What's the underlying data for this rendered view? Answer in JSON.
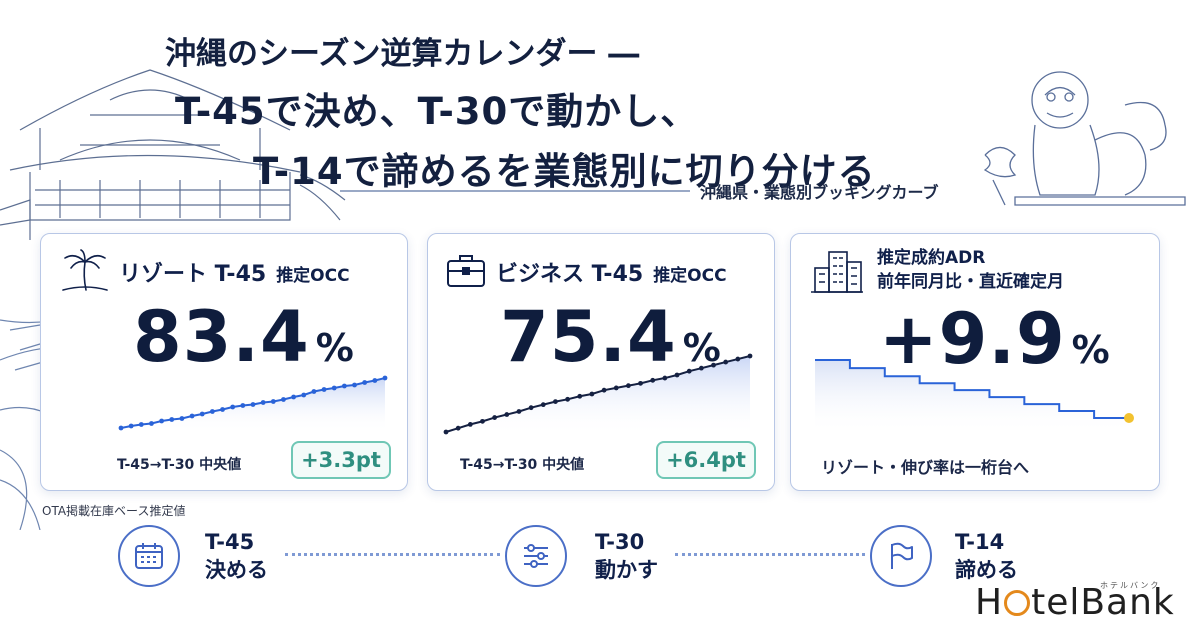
{
  "title": {
    "line1": "沖縄のシーズン逆算カレンダー ―",
    "line2": "T-45で決め、T-30で動かし、",
    "line3": "T-14で諦めるを業態別に切り分ける"
  },
  "subtitle": "沖縄県・業態別ブッキングカーブ",
  "cards": {
    "resort": {
      "title": "リゾート T-45",
      "metric_name": "推定OCC",
      "value": "83.4",
      "unit": "%",
      "range_label": "T-45→T-30 中央値",
      "delta": "+3.3pt",
      "line_color": "#2a63d8",
      "curve": [
        0.0,
        0.04,
        0.07,
        0.09,
        0.14,
        0.17,
        0.19,
        0.24,
        0.28,
        0.33,
        0.37,
        0.42,
        0.45,
        0.47,
        0.51,
        0.53,
        0.57,
        0.62,
        0.66,
        0.73,
        0.77,
        0.8,
        0.84,
        0.86,
        0.91,
        0.95,
        1.0
      ]
    },
    "business": {
      "title": "ビジネス T-45",
      "metric_name": "推定OCC",
      "value": "75.4",
      "unit": "%",
      "range_label": "T-45→T-30 中央値",
      "delta": "+6.4pt",
      "line_color": "#152142",
      "curve": [
        0.0,
        0.05,
        0.1,
        0.14,
        0.19,
        0.23,
        0.27,
        0.32,
        0.36,
        0.4,
        0.43,
        0.47,
        0.5,
        0.55,
        0.58,
        0.61,
        0.64,
        0.68,
        0.71,
        0.75,
        0.8,
        0.84,
        0.88,
        0.92,
        0.96,
        1.0
      ]
    },
    "adr": {
      "head_line1": "推定成約ADR",
      "head_line2": "前年同月比・直近確定月",
      "value": "+9.9",
      "unit": "%",
      "foot": "リゾート・伸び率は一桁台へ",
      "line_color": "#2a63d8",
      "end_dot_color": "#f2c230",
      "steps": [
        1.0,
        0.86,
        0.72,
        0.6,
        0.48,
        0.36,
        0.24,
        0.12,
        0.0
      ]
    }
  },
  "note": "OTA掲載在庫ベース推定値",
  "timeline": [
    {
      "code": "T-45",
      "action": "決める",
      "icon": "calendar-icon"
    },
    {
      "code": "T-30",
      "action": "動かす",
      "icon": "sliders-icon"
    },
    {
      "code": "T-14",
      "action": "諦める",
      "icon": "flag-icon"
    }
  ],
  "brand": {
    "name_before": "H",
    "name_after": "telBank",
    "kana": "ホテルバンク",
    "accent": "#e4891c"
  }
}
